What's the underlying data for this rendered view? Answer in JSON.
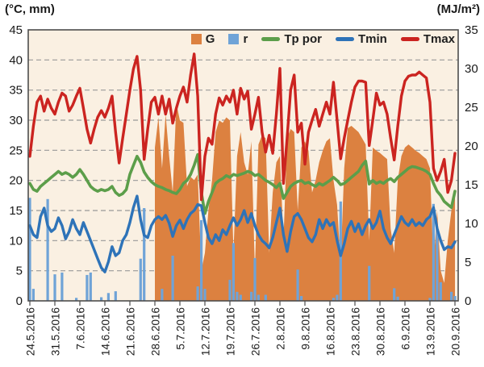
{
  "figure": {
    "left_axis_unit": "(°C, mm)",
    "right_axis_unit": "(MJ/m²)",
    "left_ticks": [
      45,
      40,
      35,
      30,
      25,
      20,
      15,
      10,
      5,
      0
    ],
    "right_ticks": [
      35,
      30,
      25,
      20,
      15,
      10,
      5,
      0
    ],
    "x_tick_labels": [
      "24.5.2016",
      "31.5.2016",
      "7.6.2016",
      "14.6.2016",
      "21.6.2016",
      "28.6.2016",
      "5.7.2016",
      "12.7.2016",
      "19.7.2016",
      "26.7.2016",
      "2.8.2016",
      "9.8.2016",
      "16.8.2016",
      "23.8.2016",
      "30.8.2016",
      "6.9.2016",
      "13.9.2016",
      "20.9.2016"
    ],
    "legend": [
      {
        "label": "G",
        "swatch": "square",
        "color": "#DC8140",
        "icon": "orange-square-icon"
      },
      {
        "label": "r",
        "swatch": "square",
        "color": "#6FA3D7",
        "icon": "blue-square-icon"
      },
      {
        "label": "Tp por",
        "swatch": "line",
        "color": "#5C9E4A",
        "icon": "green-line-icon"
      },
      {
        "label": "Tmin",
        "swatch": "line",
        "color": "#2E73B8",
        "icon": "blue-line-icon"
      },
      {
        "label": "Tmax",
        "swatch": "line",
        "color": "#CB2420",
        "icon": "red-line-icon"
      }
    ],
    "colors": {
      "plot_bg": "#FAF0E2",
      "grid": "#999999",
      "frame": "#4D4D4D",
      "text": "#1A1A1A"
    }
  },
  "chart_data": {
    "type": "combo",
    "x": {
      "start": "24.5.2016",
      "end": "20.9.2016",
      "n_days": 120,
      "tick_interval_days": 7
    },
    "left_axis": {
      "label": "(°C, mm)",
      "range": [
        0,
        45
      ],
      "grid": true
    },
    "right_axis": {
      "label": "(MJ/m²)",
      "range": [
        0,
        35
      ]
    },
    "legend_position": "top-right-inside",
    "series": [
      {
        "name": "G",
        "type": "area",
        "axis": "right",
        "unit": "MJ/m²",
        "color": "#DC8140",
        "start_day": 35,
        "values": [
          19.8,
          23.7,
          17.1,
          24.1,
          18.7,
          14.0,
          25.5,
          23.3,
          23.0,
          14.8,
          16.0,
          15.6,
          16.3,
          3.9,
          6.2,
          11.7,
          15.6,
          21.8,
          23.3,
          23.0,
          23.7,
          23.3,
          6.2,
          18.7,
          21.8,
          17.9,
          16.3,
          20.6,
          3.9,
          20.2,
          21.4,
          21.0,
          6.2,
          14.0,
          17.9,
          18.7,
          7.8,
          21.0,
          22.2,
          21.8,
          11.7,
          19.8,
          20.6,
          19.4,
          14.0,
          15.6,
          17.9,
          19.4,
          20.6,
          21.0,
          15.6,
          12.4,
          4.7,
          17.1,
          22.3,
          22.6,
          22.2,
          21.8,
          21.0,
          20.2,
          7.8,
          19.8,
          19.4,
          19.1,
          18.7,
          18.3,
          9.3,
          6.2,
          15.6,
          18.7,
          19.8,
          20.2,
          19.8,
          19.4,
          19.1,
          18.7,
          18.3,
          17.1,
          4.7,
          11.7,
          3.9,
          2.3,
          7.8,
          11.7,
          14.4
        ]
      },
      {
        "name": "r",
        "type": "bar",
        "axis": "left",
        "unit": "mm",
        "color": "#6FA3D7",
        "points": {
          "0": 17.1,
          "1": 2,
          "5": 16.9,
          "7": 4.4,
          "9": 4.7,
          "13": 0.5,
          "16": 4.3,
          "17": 4.7,
          "20": 0.6,
          "22": 1.3,
          "24": 1.6,
          "31": 7,
          "32": 15.4,
          "37": 2,
          "40": 7.5,
          "47": 2.4,
          "48": 13.4,
          "49": 2,
          "56": 3.5,
          "57": 9.6,
          "58": 1.5,
          "59": 1,
          "62": 1.5,
          "63": 7.1,
          "64": 1,
          "66": 1,
          "75": 5.2,
          "76": 0.8,
          "85": 0.5,
          "86": 1,
          "87": 16.5,
          "95": 5.8,
          "102": 2.1,
          "103": 0.7,
          "112": 0.5,
          "113": 16.1,
          "114": 12,
          "115": 3.1,
          "118": 1.5,
          "119": 0.8
        }
      },
      {
        "name": "Tp por",
        "type": "line",
        "axis": "left",
        "unit": "°C",
        "color": "#5C9E4A",
        "values": [
          19.5,
          18.5,
          18.2,
          19,
          19.5,
          20,
          20.5,
          21,
          21.5,
          21,
          21.3,
          21,
          20.5,
          21,
          21.8,
          21,
          20,
          19,
          18.5,
          18.2,
          18.5,
          18.3,
          18.5,
          19,
          18,
          17.5,
          17.8,
          18.5,
          21,
          22.5,
          24,
          23,
          21.4,
          20.5,
          19.8,
          19.3,
          19,
          18.8,
          18.5,
          18.3,
          18,
          17.8,
          18.5,
          19.5,
          20,
          21,
          22.5,
          24.3,
          18,
          14.5,
          16.5,
          18,
          19.5,
          20,
          20.3,
          20.8,
          20.5,
          21,
          20.8,
          21,
          21.2,
          21.5,
          21.3,
          20.8,
          21,
          20.5,
          20,
          19.7,
          19.3,
          18.8,
          19.5,
          17,
          18,
          19,
          19.5,
          19.8,
          20,
          19.5,
          19.7,
          19.3,
          19,
          19.5,
          19.2,
          19.6,
          20,
          20.5,
          20,
          19.3,
          19.5,
          20,
          20.5,
          21,
          21.5,
          22.5,
          23.2,
          19.4,
          20,
          19.5,
          19.8,
          19.5,
          20,
          20.3,
          19.8,
          20.5,
          21,
          21.5,
          22,
          22.3,
          22.2,
          22,
          21.8,
          21.5,
          21,
          19.5,
          18.2,
          17.5,
          16.5,
          16,
          15.5,
          18.2
        ]
      },
      {
        "name": "Tmin",
        "type": "line",
        "axis": "left",
        "unit": "°C",
        "color": "#2E73B8",
        "values": [
          12.5,
          11,
          10.5,
          14,
          15.4,
          12.5,
          11.5,
          12,
          13.8,
          12.5,
          10.3,
          11.5,
          13.5,
          12,
          11,
          13,
          11.5,
          10,
          8.5,
          7,
          5.5,
          4.8,
          6.5,
          9,
          7.5,
          8,
          10,
          11,
          13,
          15.5,
          17.4,
          13.5,
          10.9,
          10.5,
          12.5,
          13.5,
          14,
          13.5,
          14.2,
          12.9,
          10.7,
          12.5,
          13.4,
          12,
          13.5,
          14.5,
          15,
          16,
          15.8,
          13,
          10.5,
          9.5,
          11,
          10,
          11.8,
          11,
          12.5,
          13.8,
          12.5,
          13.5,
          15,
          13,
          14.5,
          12.5,
          11,
          10,
          9.5,
          8.8,
          10.5,
          13,
          15.4,
          11,
          8.2,
          11.5,
          14,
          14.5,
          13.5,
          12,
          10.5,
          9.8,
          11,
          13.5,
          12,
          13.5,
          12.5,
          13,
          10,
          7.5,
          9.5,
          12,
          13.2,
          11.5,
          12.8,
          11,
          12.5,
          13.5,
          12,
          13,
          14.9,
          12,
          10.5,
          9.5,
          11,
          12.5,
          14,
          13,
          12.5,
          13.5,
          12.5,
          13,
          12.5,
          13.5,
          14,
          15.5,
          12,
          10,
          8.5,
          9,
          8.8,
          9.8
        ]
      },
      {
        "name": "Tmax",
        "type": "line",
        "axis": "left",
        "unit": "°C",
        "color": "#CB2420",
        "values": [
          24,
          29,
          33,
          34,
          31.5,
          33.5,
          32,
          31,
          33,
          34.5,
          34,
          31.5,
          32.5,
          34,
          35.3,
          32,
          28.5,
          26.2,
          28.5,
          30.5,
          31.6,
          30.5,
          32,
          34,
          28,
          22.9,
          27,
          31,
          35,
          38.5,
          40.6,
          35,
          23.5,
          28.5,
          33,
          33.8,
          31,
          34,
          31,
          33.5,
          29.5,
          32,
          34,
          35.5,
          33,
          37.5,
          41,
          34,
          16.8,
          24,
          27,
          26,
          31,
          33.7,
          32.5,
          34,
          33,
          35,
          31,
          35.3,
          33.5,
          34.8,
          28.5,
          31,
          33.8,
          28,
          24.7,
          27.5,
          24.5,
          31,
          38.6,
          19.5,
          27,
          35,
          37.5,
          28,
          29.5,
          22.7,
          28,
          30,
          31.8,
          29,
          31,
          33,
          31,
          36.3,
          30,
          23.6,
          27,
          30,
          33,
          35.5,
          36.5,
          36.5,
          36.3,
          25.8,
          30,
          34.5,
          32.5,
          33,
          31,
          27,
          23.4,
          29,
          34,
          36.5,
          37.3,
          37.5,
          37.5,
          38,
          37.5,
          37,
          33,
          22,
          20,
          21.5,
          23.5,
          18,
          20,
          24.5
        ]
      }
    ]
  }
}
